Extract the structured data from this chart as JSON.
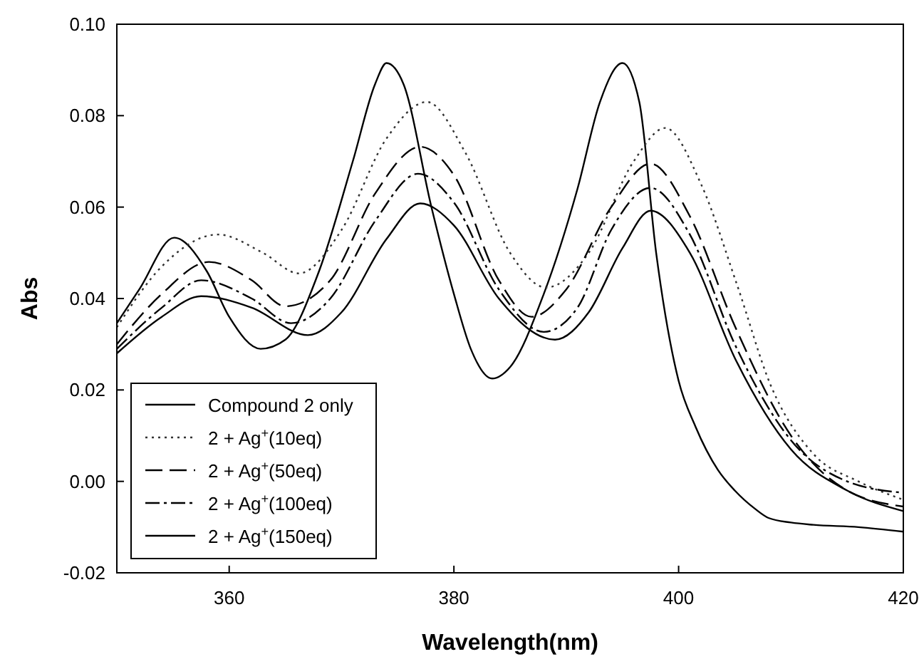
{
  "chart_data": {
    "type": "line",
    "xlabel": "Wavelength(nm)",
    "ylabel": "Abs",
    "xlim": [
      350,
      420
    ],
    "ylim": [
      -0.02,
      0.1
    ],
    "xticks": [
      360,
      380,
      400,
      420
    ],
    "yticks": [
      {
        "value": -0.02,
        "label": "-0.02"
      },
      {
        "value": 0,
        "label": "0.00"
      },
      {
        "value": 0.02,
        "label": "0.02"
      },
      {
        "value": 0.04,
        "label": "0.04"
      },
      {
        "value": 0.06,
        "label": "0.06"
      },
      {
        "value": 0.08,
        "label": "0.08"
      },
      {
        "value": 0.1,
        "label": "0.10"
      }
    ],
    "grid": false,
    "legend": "bottom left",
    "series": [
      {
        "name": "Compound 2 only",
        "color": "#000000",
        "line_style": "solid",
        "x": [
          350,
          352,
          355.1,
          358,
          360,
          362.8,
          365,
          368,
          371,
          373,
          374,
          375.5,
          378,
          380,
          381.5,
          383.4,
          385,
          388,
          391,
          393,
          395,
          396.5,
          398,
          400,
          401.5,
          403.5,
          405,
          406.8,
          408,
          410,
          412,
          416,
          420
        ],
        "values": [
          0.0346,
          0.042,
          0.0533,
          0.046,
          0.036,
          0.029,
          0.031,
          0.046,
          0.07,
          0.087,
          0.0915,
          0.087,
          0.06,
          0.041,
          0.029,
          0.0225,
          0.025,
          0.041,
          0.064,
          0.083,
          0.0915,
          0.083,
          0.05,
          0.022,
          0.012,
          0.0025,
          -0.002,
          -0.006,
          -0.008,
          -0.009,
          -0.0095,
          -0.01,
          -0.011
        ]
      },
      {
        "name": "2 + Ag$^{+}$(10eq)",
        "color": "#333333",
        "line_style": "dotted",
        "x": [
          350,
          354,
          359,
          363,
          366.2,
          370,
          374,
          377.6,
          381,
          385,
          388.2,
          392,
          396,
          398.8,
          402,
          405.2,
          408.2,
          412,
          416,
          420
        ],
        "values": [
          0.0337,
          0.047,
          0.054,
          0.05,
          0.0455,
          0.055,
          0.075,
          0.083,
          0.072,
          0.05,
          0.0424,
          0.05,
          0.07,
          0.0773,
          0.065,
          0.043,
          0.021,
          0.006,
          0,
          -0.004
        ]
      },
      {
        "name": "2 + Ag$^{+}$(50eq)",
        "color": "#000000",
        "line_style": "dashed",
        "x": [
          350,
          354,
          358.2,
          362,
          365,
          369,
          373,
          377,
          380,
          384,
          386.9,
          390,
          394,
          397.5,
          401,
          405,
          410,
          415,
          420
        ],
        "values": [
          0.03,
          0.041,
          0.048,
          0.044,
          0.0383,
          0.044,
          0.063,
          0.0732,
          0.067,
          0.044,
          0.036,
          0.042,
          0.06,
          0.0695,
          0.058,
          0.034,
          0.01,
          -0.002,
          -0.0055
        ]
      },
      {
        "name": "2 + Ag$^{+}$(100eq)",
        "color": "#000000",
        "line_style": "dashdot",
        "x": [
          350,
          354,
          357.5,
          362,
          365.5,
          369,
          373,
          376.8,
          380,
          384,
          388,
          391,
          394,
          397.5,
          401,
          405,
          410,
          415,
          420
        ],
        "values": [
          0.029,
          0.038,
          0.044,
          0.04,
          0.0346,
          0.04,
          0.057,
          0.0673,
          0.061,
          0.042,
          0.0327,
          0.038,
          0.055,
          0.0642,
          0.054,
          0.03,
          0.009,
          0,
          -0.0025
        ]
      },
      {
        "name": "2 + Ag$^{+}$(150eq)",
        "color": "#000000",
        "line_style": "solid",
        "x": [
          350,
          354,
          357.5,
          362,
          367,
          370,
          374,
          377,
          380,
          384,
          389,
          392,
          395,
          397.5,
          401,
          405,
          410,
          415,
          420
        ],
        "values": [
          0.028,
          0.036,
          0.0405,
          0.038,
          0.032,
          0.037,
          0.053,
          0.0608,
          0.056,
          0.04,
          0.031,
          0.037,
          0.051,
          0.0592,
          0.05,
          0.027,
          0.007,
          -0.002,
          -0.0065
        ]
      }
    ]
  }
}
